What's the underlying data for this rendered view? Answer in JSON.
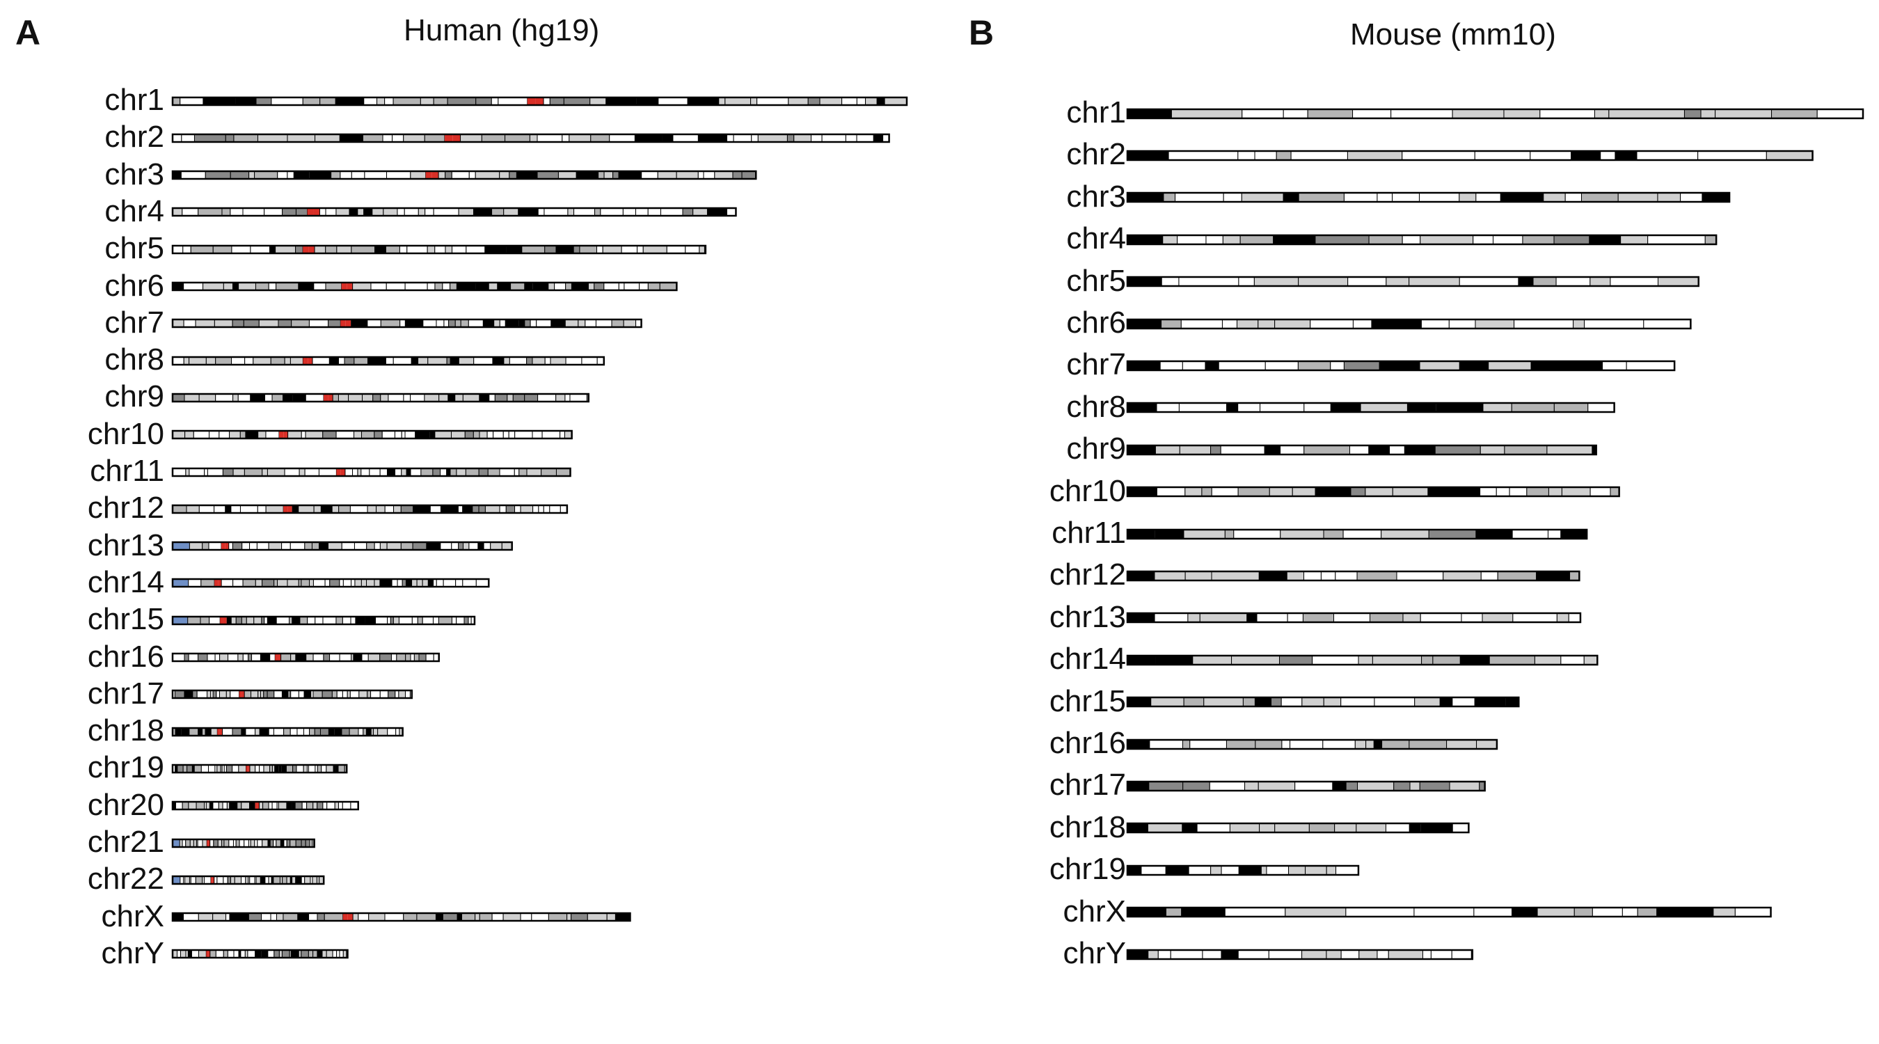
{
  "panels": [
    {
      "letter": "A",
      "title": "Human (hg19)",
      "chromosomes": [
        {
          "name": "chr1",
          "length": 249.2
        },
        {
          "name": "chr2",
          "length": 243.2
        },
        {
          "name": "chr3",
          "length": 198.0
        },
        {
          "name": "chr4",
          "length": 191.2
        },
        {
          "name": "chr5",
          "length": 180.9
        },
        {
          "name": "chr6",
          "length": 171.1
        },
        {
          "name": "chr7",
          "length": 159.1
        },
        {
          "name": "chr8",
          "length": 146.4
        },
        {
          "name": "chr9",
          "length": 141.2
        },
        {
          "name": "chr10",
          "length": 135.5
        },
        {
          "name": "chr11",
          "length": 135.0
        },
        {
          "name": "chr12",
          "length": 133.9
        },
        {
          "name": "chr13",
          "length": 115.2
        },
        {
          "name": "chr14",
          "length": 107.3
        },
        {
          "name": "chr15",
          "length": 102.5
        },
        {
          "name": "chr16",
          "length": 90.4
        },
        {
          "name": "chr17",
          "length": 81.2
        },
        {
          "name": "chr18",
          "length": 78.1
        },
        {
          "name": "chr19",
          "length": 59.1
        },
        {
          "name": "chr20",
          "length": 63.0
        },
        {
          "name": "chr21",
          "length": 48.1
        },
        {
          "name": "chr22",
          "length": 51.3
        },
        {
          "name": "chrX",
          "length": 155.3
        },
        {
          "name": "chrY",
          "length": 59.4
        }
      ]
    },
    {
      "letter": "B",
      "title": "Mouse (mm10)",
      "chromosomes": [
        {
          "name": "chr1",
          "length": 195.5
        },
        {
          "name": "chr2",
          "length": 182.1
        },
        {
          "name": "chr3",
          "length": 160.0
        },
        {
          "name": "chr4",
          "length": 156.5
        },
        {
          "name": "chr5",
          "length": 151.8
        },
        {
          "name": "chr6",
          "length": 149.7
        },
        {
          "name": "chr7",
          "length": 145.4
        },
        {
          "name": "chr8",
          "length": 129.4
        },
        {
          "name": "chr9",
          "length": 124.6
        },
        {
          "name": "chr10",
          "length": 130.7
        },
        {
          "name": "chr11",
          "length": 122.1
        },
        {
          "name": "chr12",
          "length": 120.1
        },
        {
          "name": "chr13",
          "length": 120.4
        },
        {
          "name": "chr14",
          "length": 124.9
        },
        {
          "name": "chr15",
          "length": 104.0
        },
        {
          "name": "chr16",
          "length": 98.2
        },
        {
          "name": "chr17",
          "length": 95.0
        },
        {
          "name": "chr18",
          "length": 90.7
        },
        {
          "name": "chr19",
          "length": 61.4
        },
        {
          "name": "chrX",
          "length": 171.0
        },
        {
          "name": "chrY",
          "length": 91.7
        }
      ]
    }
  ],
  "colors": {
    "gneg": "#ffffff",
    "gpos25": "#d0d0d0",
    "gpos50": "#b4b4b4",
    "gpos75": "#888888",
    "gpos100": "#000000",
    "acen": "#d92f27",
    "stalk": "#6f8fc6",
    "outline": "#000000"
  }
}
